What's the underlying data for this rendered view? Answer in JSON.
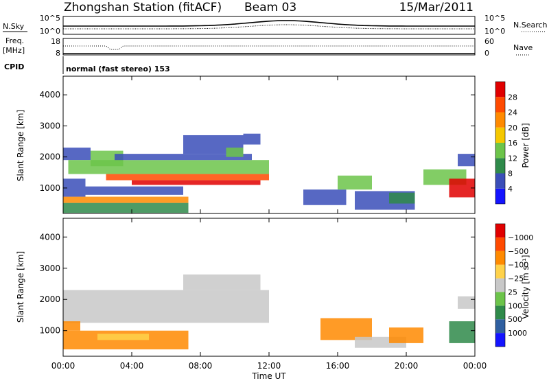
{
  "header": {
    "station": "Zhongshan Station (fitACF)",
    "beam": "Beam 03",
    "date": "15/Mar/2011",
    "cpid_label": "CPID",
    "cpid_text": "normal (fast stereo) 153"
  },
  "strips": {
    "nsky": {
      "left_label": "N.Sky",
      "right_label": "N.Search",
      "left_ticks": [
        "10^5",
        "10^0"
      ],
      "right_ticks": [
        "10^5",
        "10^0"
      ]
    },
    "freq": {
      "left_label_1": "Freq.",
      "left_label_2": "[MHz]",
      "right_label": "Nave",
      "left_ticks": [
        "18",
        "8"
      ],
      "right_ticks": [
        "60",
        "0"
      ]
    }
  },
  "x_axis": {
    "label": "Time UT",
    "ticks": [
      "00:00",
      "04:00",
      "08:00",
      "12:00",
      "16:00",
      "20:00",
      "00:00"
    ],
    "range_hours": [
      0,
      24
    ]
  },
  "chart_data": [
    {
      "type": "heatmap",
      "name": "power",
      "ylabel": "Slant Range [km]",
      "yticks": [
        "1000",
        "2000",
        "3000",
        "4000"
      ],
      "ylim": [
        180,
        4600
      ],
      "colorbar_label": "Power [dB]",
      "colorbar_ticks": [
        "4",
        "8",
        "12",
        "16",
        "20",
        "24",
        "28"
      ],
      "colorbar_colors": [
        "#1414ff",
        "#3a4eb8",
        "#2f8a4a",
        "#6cc44a",
        "#f5c800",
        "#ff8a00",
        "#ff4a00",
        "#e00000"
      ],
      "bands": [
        {
          "t0": 0.0,
          "t1": 7.3,
          "r0": 200,
          "r1": 520,
          "c": "#2f8a4a"
        },
        {
          "t0": 0.0,
          "t1": 7.3,
          "r0": 520,
          "r1": 720,
          "c": "#ff8a00"
        },
        {
          "t0": 0.0,
          "t1": 1.3,
          "r0": 720,
          "r1": 1300,
          "c": "#3a4eb8"
        },
        {
          "t0": 1.3,
          "t1": 7.0,
          "r0": 780,
          "r1": 1050,
          "c": "#3a4eb8"
        },
        {
          "t0": 0.0,
          "t1": 1.6,
          "r0": 1900,
          "r1": 2300,
          "c": "#3a4eb8"
        },
        {
          "t0": 1.6,
          "t1": 3.5,
          "r0": 1700,
          "r1": 2200,
          "c": "#6cc44a"
        },
        {
          "t0": 0.3,
          "t1": 12.0,
          "r0": 1450,
          "r1": 1900,
          "c": "#6cc44a"
        },
        {
          "t0": 2.5,
          "t1": 12.0,
          "r0": 1250,
          "r1": 1450,
          "c": "#ff4a00"
        },
        {
          "t0": 4.0,
          "t1": 11.5,
          "r0": 1100,
          "r1": 1250,
          "c": "#e00000"
        },
        {
          "t0": 3.0,
          "t1": 11.0,
          "r0": 1900,
          "r1": 2100,
          "c": "#3a4eb8"
        },
        {
          "t0": 7.0,
          "t1": 10.5,
          "r0": 2100,
          "r1": 2700,
          "c": "#3a4eb8"
        },
        {
          "t0": 9.5,
          "t1": 10.5,
          "r0": 2000,
          "r1": 2300,
          "c": "#6cc44a"
        },
        {
          "t0": 10.5,
          "t1": 11.5,
          "r0": 2400,
          "r1": 2750,
          "c": "#3a4eb8"
        },
        {
          "t0": 14.0,
          "t1": 16.5,
          "r0": 450,
          "r1": 950,
          "c": "#3a4eb8"
        },
        {
          "t0": 16.0,
          "t1": 18.0,
          "r0": 950,
          "r1": 1400,
          "c": "#6cc44a"
        },
        {
          "t0": 17.0,
          "t1": 20.5,
          "r0": 300,
          "r1": 900,
          "c": "#3a4eb8"
        },
        {
          "t0": 19.0,
          "t1": 20.5,
          "r0": 500,
          "r1": 850,
          "c": "#2f8a4a"
        },
        {
          "t0": 21.0,
          "t1": 23.5,
          "r0": 1100,
          "r1": 1600,
          "c": "#6cc44a"
        },
        {
          "t0": 22.5,
          "t1": 24.0,
          "r0": 700,
          "r1": 1300,
          "c": "#e00000"
        },
        {
          "t0": 23.0,
          "t1": 24.0,
          "r0": 1700,
          "r1": 2100,
          "c": "#3a4eb8"
        }
      ]
    },
    {
      "type": "heatmap",
      "name": "velocity",
      "ylabel": "Slant Range [km]",
      "yticks": [
        "1000",
        "2000",
        "3000",
        "4000"
      ],
      "ylim": [
        180,
        4600
      ],
      "colorbar_label": "Velocity [m s⁻¹]",
      "colorbar_ticks": [
        "1000",
        "500",
        "100",
        "25",
        "−25",
        "−100",
        "−500",
        "−1000"
      ],
      "colorbar_colors": [
        "#1414ff",
        "#2f5fa0",
        "#2f8a4a",
        "#6cc44a",
        "#c8c8c8",
        "#ffd24a",
        "#ff8a00",
        "#ff4a00",
        "#e00000"
      ],
      "bands": [
        {
          "t0": 0.0,
          "t1": 12.0,
          "r0": 1250,
          "r1": 2300,
          "c": "#c8c8c8"
        },
        {
          "t0": 7.0,
          "t1": 11.5,
          "r0": 2300,
          "r1": 2800,
          "c": "#c8c8c8"
        },
        {
          "t0": 0.0,
          "t1": 7.3,
          "r0": 400,
          "r1": 1000,
          "c": "#ff8a00"
        },
        {
          "t0": 0.0,
          "t1": 1.0,
          "r0": 1000,
          "r1": 1300,
          "c": "#ff8a00"
        },
        {
          "t0": 2.0,
          "t1": 5.0,
          "r0": 700,
          "r1": 900,
          "c": "#ffd24a"
        },
        {
          "t0": 15.0,
          "t1": 18.0,
          "r0": 700,
          "r1": 1400,
          "c": "#ff8a00"
        },
        {
          "t0": 17.0,
          "t1": 20.0,
          "r0": 450,
          "r1": 800,
          "c": "#c8c8c8"
        },
        {
          "t0": 19.0,
          "t1": 21.0,
          "r0": 600,
          "r1": 1100,
          "c": "#ff8a00"
        },
        {
          "t0": 22.5,
          "t1": 24.0,
          "r0": 600,
          "r1": 1300,
          "c": "#2f8a4a"
        },
        {
          "t0": 23.0,
          "t1": 24.0,
          "r0": 1700,
          "r1": 2100,
          "c": "#c8c8c8"
        }
      ]
    }
  ]
}
